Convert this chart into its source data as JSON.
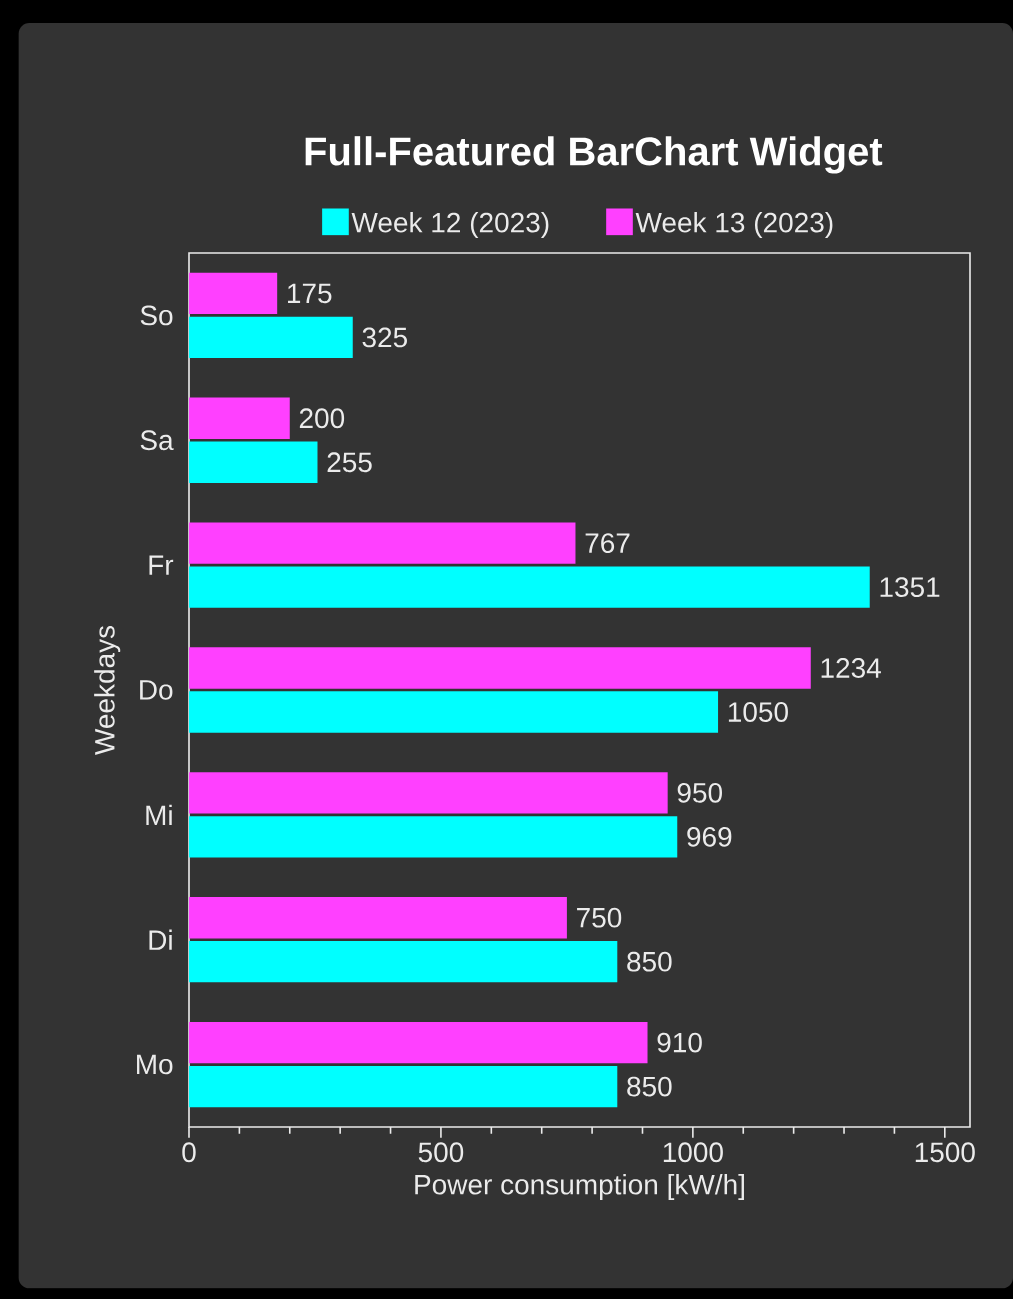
{
  "chart_data": {
    "type": "bar",
    "orientation": "horizontal",
    "title": "Full-Featured BarChart Widget",
    "xlabel": "Power consumption [kW/h]",
    "ylabel": "Weekdays",
    "categories": [
      "So",
      "Sa",
      "Fr",
      "Do",
      "Mi",
      "Di",
      "Mo"
    ],
    "series": [
      {
        "name": "Week 12 (2023)",
        "color": "#00ffff",
        "values": [
          325,
          255,
          1351,
          1050,
          969,
          850,
          850
        ]
      },
      {
        "name": "Week 13 (2023)",
        "color": "#ff40ff",
        "values": [
          175,
          200,
          767,
          1234,
          950,
          750,
          910
        ]
      }
    ],
    "xlim": [
      0,
      1550
    ],
    "xticks": [
      0,
      500,
      1000,
      1500
    ],
    "data_labels": true,
    "legend": "top",
    "grid": false
  }
}
